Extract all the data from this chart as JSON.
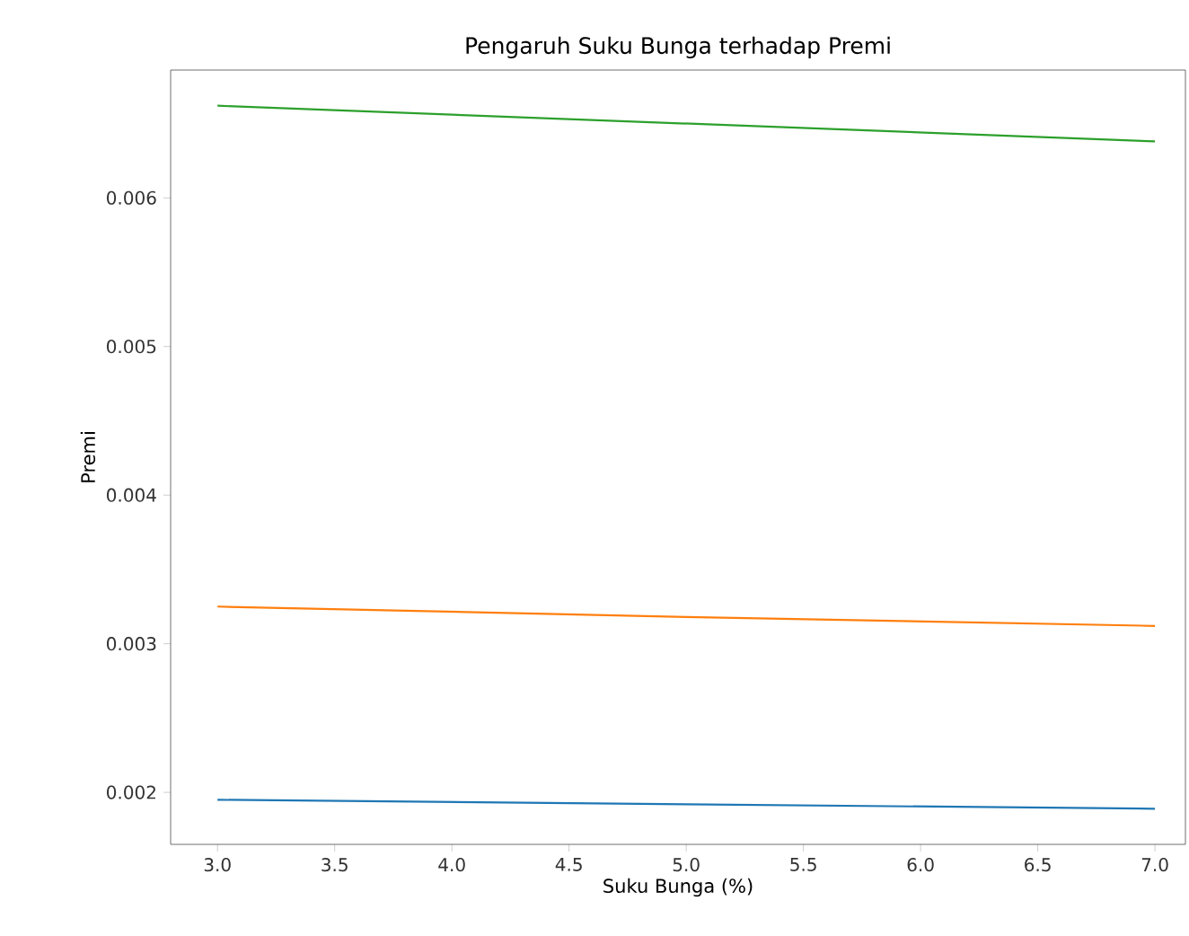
{
  "chart_data": {
    "type": "line",
    "title": "Pengaruh Suku Bunga terhadap Premi",
    "xlabel": "Suku Bunga (%)",
    "ylabel": "Premi",
    "x": [
      3,
      5,
      7
    ],
    "series": [
      {
        "color": "#1f77b4",
        "values": [
          0.00195,
          0.00192,
          0.00189
        ]
      },
      {
        "color": "#ff7f0e",
        "values": [
          0.00325,
          0.00318,
          0.00312
        ]
      },
      {
        "color": "#2ca02c",
        "values": [
          0.00662,
          0.0065,
          0.00638
        ]
      }
    ],
    "xlim": [
      2.8,
      7.13
    ],
    "ylim": [
      0.00165,
      0.00686
    ],
    "xticks": [
      {
        "value": 3,
        "label": "3.0"
      },
      {
        "value": 3.5,
        "label": "3.5"
      },
      {
        "value": 4,
        "label": "4.0"
      },
      {
        "value": 4.5,
        "label": "4.5"
      },
      {
        "value": 5,
        "label": "5.0"
      },
      {
        "value": 5.5,
        "label": "5.5"
      },
      {
        "value": 6,
        "label": "6.0"
      },
      {
        "value": 6.5,
        "label": "6.5"
      },
      {
        "value": 7,
        "label": "7.0"
      }
    ],
    "yticks": [
      0.002,
      0.003,
      0.004,
      0.005,
      0.006
    ],
    "marker": "none",
    "line_style": "solid"
  }
}
